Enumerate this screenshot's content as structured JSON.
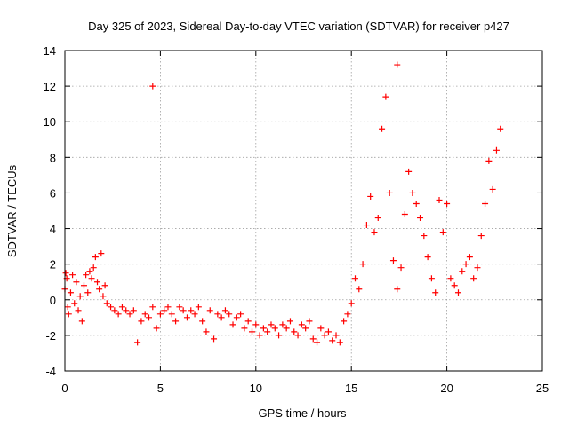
{
  "chart_data": {
    "type": "scatter",
    "title": "Day 325 of 2023, Sidereal Day-to-day VTEC variation (SDTVAR) for receiver p427",
    "xlabel": "GPS time / hours",
    "ylabel": "SDTVAR / TECUs",
    "xlim": [
      0,
      25
    ],
    "ylim": [
      -4,
      14
    ],
    "xticks": [
      "0",
      "5",
      "10",
      "15",
      "20",
      "25"
    ],
    "yticks": [
      "-4",
      "-2",
      "0",
      "2",
      "4",
      "6",
      "8",
      "10",
      "12",
      "14"
    ],
    "xtick_values": [
      0,
      5,
      10,
      15,
      20,
      25
    ],
    "ytick_values": [
      -4,
      -2,
      0,
      2,
      4,
      6,
      8,
      10,
      12,
      14
    ],
    "grid": true,
    "marker": "+",
    "series": [
      {
        "name": "SDTVAR",
        "color": "#ff0000",
        "x": [
          0.0,
          0.05,
          0.1,
          0.15,
          0.2,
          0.3,
          0.4,
          0.5,
          0.6,
          0.7,
          0.8,
          0.9,
          1.0,
          1.1,
          1.2,
          1.3,
          1.4,
          1.5,
          1.6,
          1.7,
          1.8,
          1.9,
          2.0,
          2.1,
          2.2,
          2.4,
          2.6,
          2.8,
          3.0,
          3.2,
          3.4,
          3.6,
          3.8,
          4.0,
          4.2,
          4.4,
          4.6,
          4.8,
          5.0,
          5.2,
          5.4,
          5.6,
          5.8,
          6.0,
          6.2,
          6.4,
          6.6,
          6.8,
          7.0,
          7.2,
          7.4,
          7.6,
          7.8,
          8.0,
          8.2,
          8.4,
          8.6,
          8.8,
          9.0,
          9.2,
          9.4,
          9.6,
          9.8,
          10.0,
          10.2,
          10.4,
          10.6,
          10.8,
          11.0,
          11.2,
          11.4,
          11.6,
          11.8,
          12.0,
          12.2,
          12.4,
          12.6,
          12.8,
          13.0,
          13.2,
          13.4,
          13.6,
          13.8,
          14.0,
          14.2,
          14.4,
          14.6,
          14.8,
          15.0,
          15.2,
          15.4,
          15.6,
          15.8,
          16.0,
          16.2,
          16.4,
          16.6,
          16.8,
          17.0,
          17.2,
          17.4,
          17.6,
          17.8,
          18.0,
          18.2,
          18.4,
          18.6,
          18.8,
          19.0,
          19.2,
          19.4,
          19.6,
          19.8,
          20.0,
          20.2,
          20.4,
          20.6,
          20.8,
          21.0,
          21.2,
          21.4,
          21.6,
          21.8,
          22.0,
          22.2,
          22.4,
          22.6,
          22.8
        ],
        "y": [
          0.6,
          1.5,
          1.2,
          -0.4,
          -0.8,
          0.4,
          1.4,
          -0.2,
          1.0,
          -0.6,
          0.2,
          -1.2,
          0.8,
          1.4,
          0.4,
          1.6,
          1.2,
          1.8,
          2.4,
          1.0,
          0.6,
          2.6,
          0.2,
          0.8,
          -0.2,
          -0.4,
          -0.6,
          -0.8,
          -0.4,
          -0.6,
          -0.8,
          -0.6,
          -2.4,
          -1.2,
          -0.8,
          -1.0,
          -0.4,
          -1.6,
          -0.8,
          -0.6,
          -0.4,
          -0.8,
          -1.2,
          -0.4,
          -0.6,
          -1.0,
          -0.6,
          -0.8,
          -0.4,
          -1.2,
          -1.8,
          -0.6,
          -2.2,
          -0.8,
          -1.0,
          -0.6,
          -0.8,
          -1.4,
          -1.0,
          -0.8,
          -1.6,
          -1.2,
          -1.8,
          -1.4,
          -2.0,
          -1.6,
          -1.8,
          -1.4,
          -1.6,
          -2.0,
          -1.4,
          -1.6,
          -1.2,
          -1.8,
          -2.0,
          -1.4,
          -1.6,
          -1.2,
          -2.2,
          -2.4,
          -1.6,
          -2.0,
          -1.8,
          -2.3,
          -2.0,
          -2.4,
          -1.2,
          -0.8,
          -0.2,
          1.2,
          0.6,
          2.0,
          4.2,
          5.8,
          3.8,
          4.6,
          9.6,
          11.4,
          6.0,
          2.2,
          0.6,
          1.8,
          4.8,
          7.2,
          6.0,
          5.4,
          4.6,
          3.6,
          2.4,
          1.2,
          0.4,
          5.6,
          3.8,
          5.4,
          1.2,
          0.8,
          0.4,
          1.6,
          2.0,
          2.4,
          1.2,
          1.8,
          3.6,
          5.4,
          7.8,
          6.2,
          8.4,
          9.6
        ],
        "outliers": [
          {
            "x": 4.6,
            "y": 12.0
          },
          {
            "x": 17.4,
            "y": 13.2
          }
        ]
      }
    ]
  }
}
